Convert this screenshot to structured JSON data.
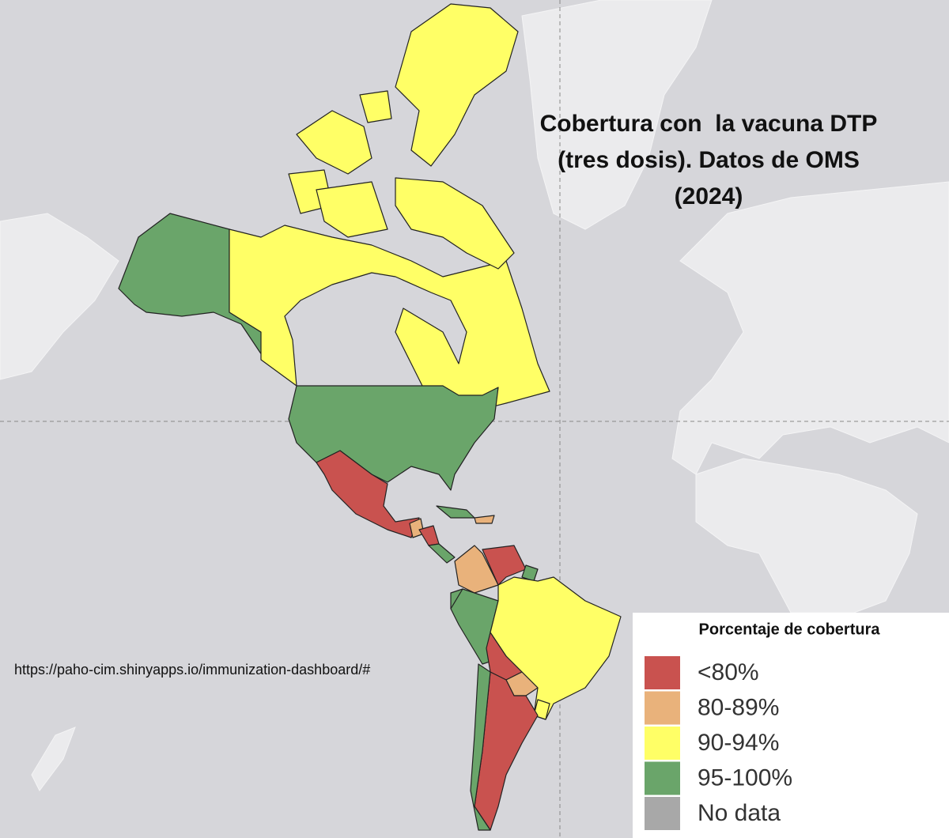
{
  "title": {
    "lines": [
      "Cobertura con  la vacuna DTP",
      "(tres dosis). Datos de OMS",
      "(2024)"
    ]
  },
  "source_url": "https://paho-cim.shinyapps.io/immunization-dashboard/#",
  "legend": {
    "title": "Porcentaje de cobertura",
    "items": [
      {
        "label": "<80%",
        "color": "#c9524f"
      },
      {
        "label": "80-89%",
        "color": "#e9b27b"
      },
      {
        "label": "90-94%",
        "color": "#ffff66"
      },
      {
        "label": "95-100%",
        "color": "#6aa56a"
      },
      {
        "label": "No data",
        "color": "#a8a8a8"
      }
    ]
  }
}
